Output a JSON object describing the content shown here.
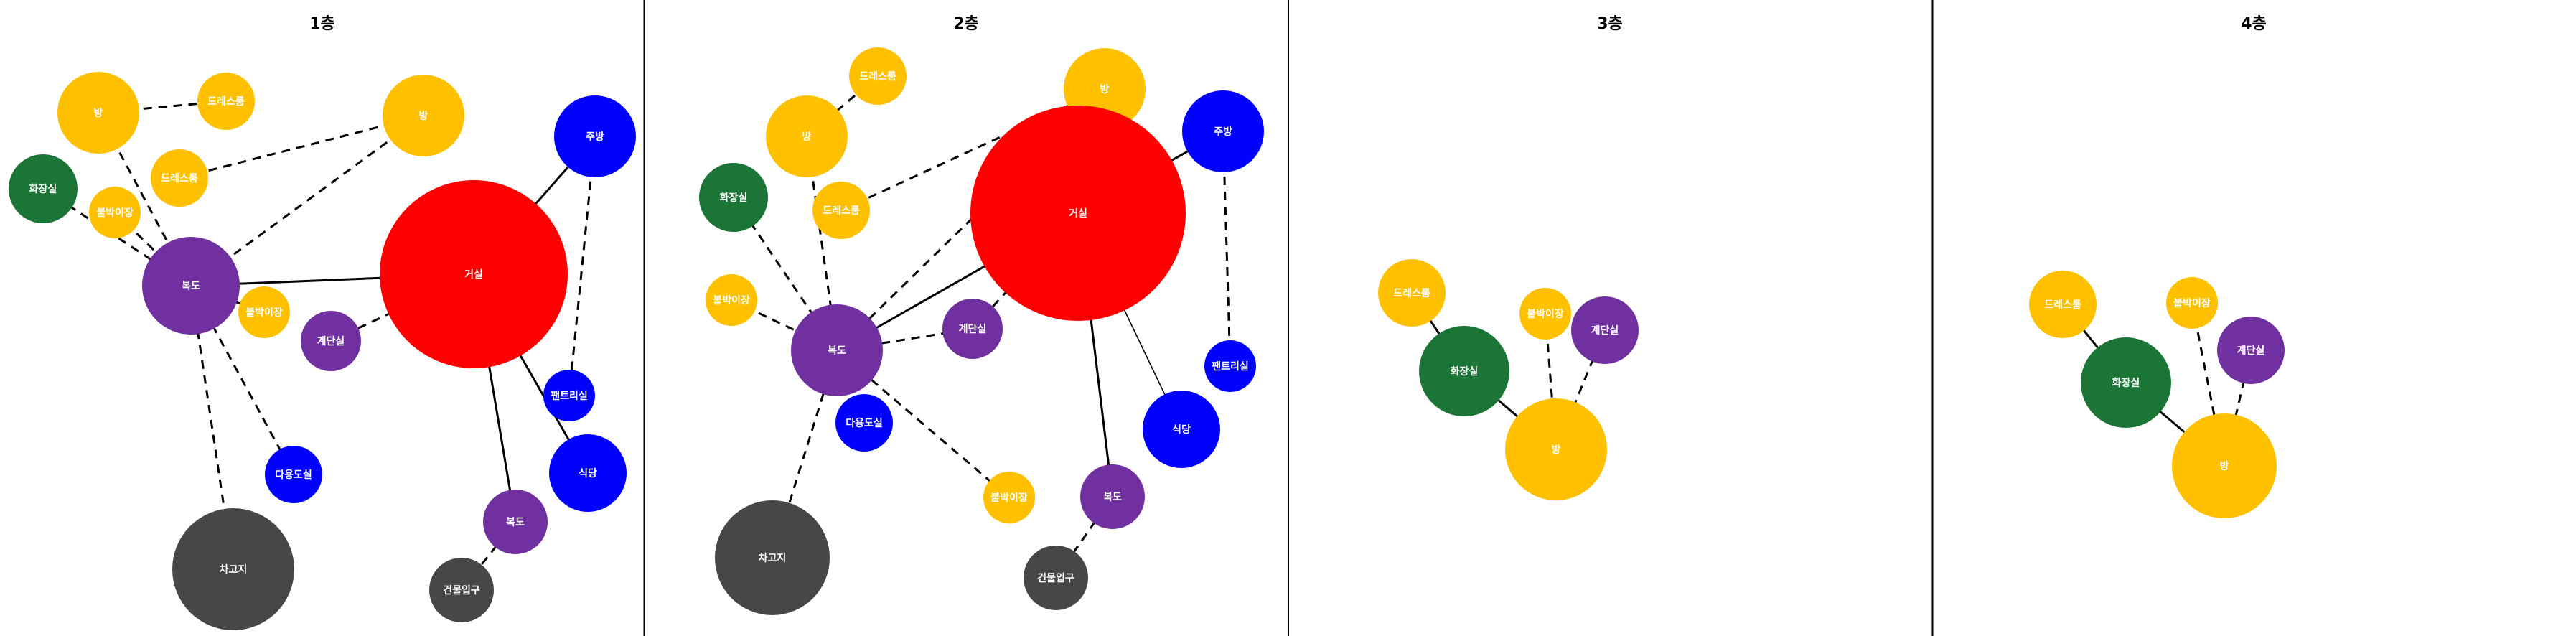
{
  "colors": {
    "living": "#ff0000",
    "corridor": "#7030a0",
    "room": "#ffc000",
    "toilet": "#1a7536",
    "kitchen": "#0000ff",
    "parking": "#474747",
    "divider": "#000000",
    "edge": "#000000"
  },
  "panels": [
    {
      "title": "1층",
      "nodes": [
        {
          "id": "room1",
          "label": "방",
          "type": "room",
          "icon": "circle"
        },
        {
          "id": "dress1",
          "label": "드레스룸",
          "type": "room",
          "icon": "circle"
        },
        {
          "id": "room2",
          "label": "방",
          "type": "room",
          "icon": "circle"
        },
        {
          "id": "dress2",
          "label": "드레스룸",
          "type": "room",
          "icon": "circle"
        },
        {
          "id": "toilet",
          "label": "화장실",
          "type": "toilet",
          "icon": "circle"
        },
        {
          "id": "storage1",
          "label": "붙박이장",
          "type": "room",
          "icon": "circle"
        },
        {
          "id": "corridor",
          "label": "복도",
          "type": "corridor",
          "icon": "circle"
        },
        {
          "id": "storage2",
          "label": "붙박이장",
          "type": "room",
          "icon": "circle"
        },
        {
          "id": "stairs",
          "label": "계단실",
          "type": "corridor",
          "icon": "circle"
        },
        {
          "id": "living",
          "label": "거실",
          "type": "living",
          "icon": "circle"
        },
        {
          "id": "kitchen",
          "label": "주방",
          "type": "kitchen",
          "icon": "circle"
        },
        {
          "id": "pantry",
          "label": "팬트리실",
          "type": "kitchen",
          "icon": "circle"
        },
        {
          "id": "dining",
          "label": "식당",
          "type": "kitchen",
          "icon": "circle"
        },
        {
          "id": "multi",
          "label": "다용도실",
          "type": "kitchen",
          "icon": "circle"
        },
        {
          "id": "hall",
          "label": "복도",
          "type": "corridor",
          "icon": "circle"
        },
        {
          "id": "entrance",
          "label": "건물입구",
          "type": "parking",
          "icon": "circle"
        },
        {
          "id": "parking",
          "label": "차고지",
          "type": "parking",
          "icon": "circle"
        }
      ],
      "edges": [
        {
          "from": "room1",
          "to": "dress1",
          "style": "dashed"
        },
        {
          "from": "room1",
          "to": "corridor",
          "style": "dashed"
        },
        {
          "from": "dress2",
          "to": "room2",
          "style": "dashed"
        },
        {
          "from": "room2",
          "to": "corridor",
          "style": "dashed"
        },
        {
          "from": "toilet",
          "to": "corridor",
          "style": "dashed"
        },
        {
          "from": "storage1",
          "to": "corridor",
          "style": "dashed"
        },
        {
          "from": "corridor",
          "to": "living",
          "style": "solid"
        },
        {
          "from": "corridor",
          "to": "storage2",
          "style": "dashed"
        },
        {
          "from": "corridor",
          "to": "multi",
          "style": "dashed"
        },
        {
          "from": "corridor",
          "to": "parking",
          "style": "dashed"
        },
        {
          "from": "stairs",
          "to": "living",
          "style": "dashed"
        },
        {
          "from": "living",
          "to": "kitchen",
          "style": "solid"
        },
        {
          "from": "kitchen",
          "to": "pantry",
          "style": "dashed"
        },
        {
          "from": "living",
          "to": "dining",
          "style": "solid"
        },
        {
          "from": "living",
          "to": "hall",
          "style": "solid"
        },
        {
          "from": "hall",
          "to": "entrance",
          "style": "dashed"
        }
      ]
    },
    {
      "title": "2층",
      "nodes": [
        {
          "id": "dress1",
          "label": "드레스룸",
          "type": "room",
          "icon": "circle"
        },
        {
          "id": "room1",
          "label": "방",
          "type": "room",
          "icon": "circle"
        },
        {
          "id": "room2",
          "label": "방",
          "type": "room",
          "icon": "circle"
        },
        {
          "id": "toilet",
          "label": "화장실",
          "type": "toilet",
          "icon": "circle"
        },
        {
          "id": "dress2",
          "label": "드레스룸",
          "type": "room",
          "icon": "circle"
        },
        {
          "id": "living",
          "label": "거실",
          "type": "living",
          "icon": "circle"
        },
        {
          "id": "kitchen",
          "label": "주방",
          "type": "kitchen",
          "icon": "circle"
        },
        {
          "id": "storage1",
          "label": "붙박이장",
          "type": "room",
          "icon": "circle"
        },
        {
          "id": "corridor",
          "label": "복도",
          "type": "corridor",
          "icon": "circle"
        },
        {
          "id": "stairs",
          "label": "계단실",
          "type": "corridor",
          "icon": "circle"
        },
        {
          "id": "pantry",
          "label": "팬트리실",
          "type": "kitchen",
          "icon": "circle"
        },
        {
          "id": "multi",
          "label": "다용도실",
          "type": "kitchen",
          "icon": "circle"
        },
        {
          "id": "dining",
          "label": "식당",
          "type": "kitchen",
          "icon": "circle"
        },
        {
          "id": "storage2",
          "label": "붙박이장",
          "type": "room",
          "icon": "circle"
        },
        {
          "id": "hall",
          "label": "복도",
          "type": "corridor",
          "icon": "circle"
        },
        {
          "id": "entrance",
          "label": "건물입구",
          "type": "parking",
          "icon": "circle"
        },
        {
          "id": "parking",
          "label": "차고지",
          "type": "parking",
          "icon": "circle"
        }
      ],
      "edges": [
        {
          "from": "dress1",
          "to": "room1",
          "style": "dashed"
        },
        {
          "from": "room1",
          "to": "corridor",
          "style": "dashed"
        },
        {
          "from": "dress2",
          "to": "room2",
          "style": "dashed"
        },
        {
          "from": "toilet",
          "to": "corridor",
          "style": "dashed"
        },
        {
          "from": "storage1",
          "to": "corridor",
          "style": "dashed"
        },
        {
          "from": "corridor",
          "to": "living",
          "style": "solid"
        },
        {
          "from": "corridor",
          "to": "room2",
          "style": "dashed"
        },
        {
          "from": "corridor",
          "to": "stairs",
          "style": "dashed"
        },
        {
          "from": "corridor",
          "to": "parking",
          "style": "dashed"
        },
        {
          "from": "corridor",
          "to": "storage2",
          "style": "dashed"
        },
        {
          "from": "stairs",
          "to": "living",
          "style": "dashed"
        },
        {
          "from": "living",
          "to": "kitchen",
          "style": "solid"
        },
        {
          "from": "kitchen",
          "to": "pantry",
          "style": "dashed"
        },
        {
          "from": "living",
          "to": "dining",
          "style": "thin"
        },
        {
          "from": "living",
          "to": "hall",
          "style": "solid"
        },
        {
          "from": "hall",
          "to": "entrance",
          "style": "dashed"
        }
      ]
    },
    {
      "title": "3층",
      "nodes": [
        {
          "id": "dress",
          "label": "드레스룸",
          "type": "room",
          "icon": "circle"
        },
        {
          "id": "storage",
          "label": "붙박이장",
          "type": "room",
          "icon": "circle"
        },
        {
          "id": "stairs",
          "label": "계단실",
          "type": "corridor",
          "icon": "circle"
        },
        {
          "id": "toilet",
          "label": "화장실",
          "type": "toilet",
          "icon": "circle"
        },
        {
          "id": "room",
          "label": "방",
          "type": "room",
          "icon": "circle"
        }
      ],
      "edges": [
        {
          "from": "dress",
          "to": "toilet",
          "style": "solid"
        },
        {
          "from": "toilet",
          "to": "room",
          "style": "solid"
        },
        {
          "from": "storage",
          "to": "room",
          "style": "dashed"
        },
        {
          "from": "stairs",
          "to": "room",
          "style": "dashed"
        }
      ]
    },
    {
      "title": "4층",
      "nodes": [
        {
          "id": "dress",
          "label": "드레스룸",
          "type": "room",
          "icon": "circle"
        },
        {
          "id": "storage",
          "label": "붙박이장",
          "type": "room",
          "icon": "circle"
        },
        {
          "id": "stairs",
          "label": "계단실",
          "type": "corridor",
          "icon": "circle"
        },
        {
          "id": "toilet",
          "label": "화장실",
          "type": "toilet",
          "icon": "circle"
        },
        {
          "id": "room",
          "label": "방",
          "type": "room",
          "icon": "circle"
        }
      ],
      "edges": [
        {
          "from": "dress",
          "to": "toilet",
          "style": "solid"
        },
        {
          "from": "toilet",
          "to": "room",
          "style": "solid"
        },
        {
          "from": "storage",
          "to": "room",
          "style": "dashed"
        },
        {
          "from": "stairs",
          "to": "room",
          "style": "dashed"
        }
      ]
    }
  ]
}
